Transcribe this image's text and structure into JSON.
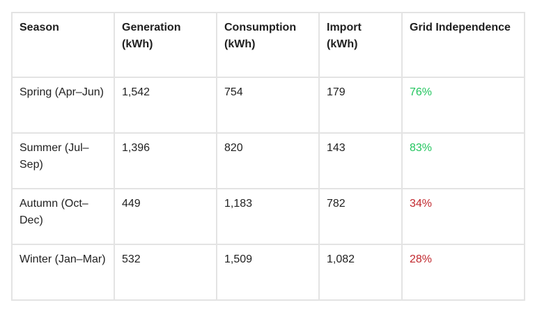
{
  "table": {
    "headers": [
      "Season",
      "Generation (kWh)",
      "Consumption (kWh)",
      "Import (kWh)",
      "Grid Independence"
    ],
    "rows": [
      {
        "season": "Spring (Apr–Jun)",
        "generation": "1,542",
        "consumption": "754",
        "import": "179",
        "independence": "76%",
        "status": "good"
      },
      {
        "season": "Summer (Jul–Sep)",
        "generation": "1,396",
        "consumption": "820",
        "import": "143",
        "independence": "83%",
        "status": "good"
      },
      {
        "season": "Autumn (Oct–Dec)",
        "generation": "449",
        "consumption": "1,183",
        "import": "782",
        "independence": "34%",
        "status": "bad"
      },
      {
        "season": "Winter (Jan–Mar)",
        "generation": "532",
        "consumption": "1,509",
        "import": "1,082",
        "independence": "28%",
        "status": "bad"
      }
    ]
  },
  "colors": {
    "good": "#22c55e",
    "bad": "#c1272d",
    "border": "#e3e3e3"
  }
}
